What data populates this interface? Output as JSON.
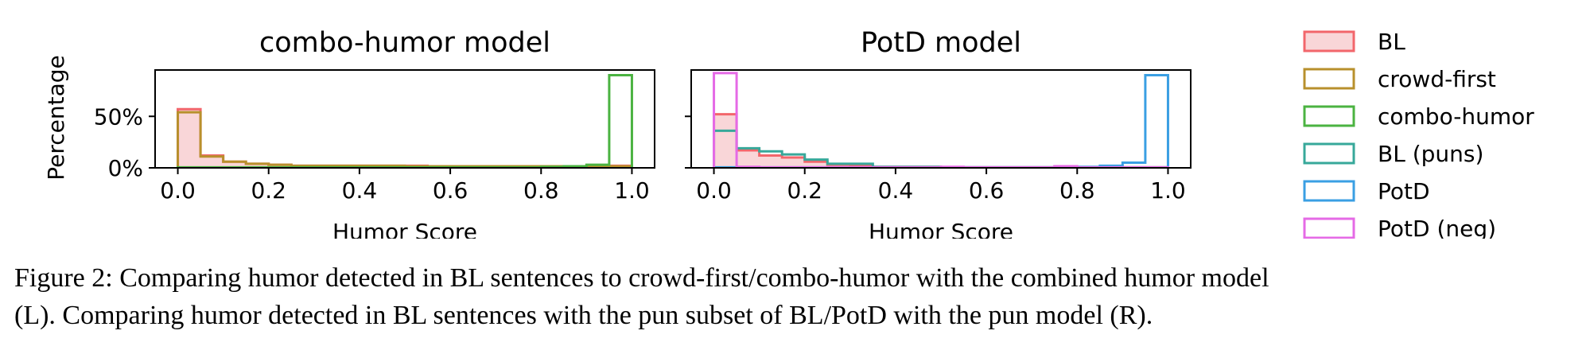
{
  "colors": {
    "BL": "#f2666b",
    "BL_fill": "#f9d6d8",
    "crowd-first": "#b8902c",
    "combo-humor": "#4bb341",
    "BL (puns)": "#37a89a",
    "PotD": "#3a9fe3",
    "PotD (neg)": "#e56ae6"
  },
  "chart_data": [
    {
      "type": "histogram",
      "title": "combo-humor model",
      "xlabel": "Humor Score",
      "ylabel": "Percentage",
      "xlim": [
        -0.05,
        1.05
      ],
      "ylim": [
        0,
        95
      ],
      "xticks": [
        "0.0",
        "0.2",
        "0.4",
        "0.6",
        "0.8",
        "1.0"
      ],
      "yticks": [
        "0%",
        "50%"
      ],
      "bin_edges": [
        0,
        0.05,
        0.1,
        0.15,
        0.2,
        0.25,
        0.3,
        0.35,
        0.4,
        0.45,
        0.5,
        0.55,
        0.6,
        0.65,
        0.7,
        0.75,
        0.8,
        0.85,
        0.9,
        0.95,
        1.0
      ],
      "series": [
        {
          "name": "BL",
          "filled": true,
          "values": [
            57,
            12,
            6,
            4,
            3,
            2,
            2,
            2,
            2,
            2,
            2,
            1.5,
            1.5,
            1.5,
            1.5,
            1.5,
            1.5,
            1.5,
            2,
            2
          ]
        },
        {
          "name": "crowd-first",
          "values": [
            54,
            11,
            6,
            4,
            3,
            2,
            2,
            2,
            2,
            2,
            1.5,
            1.5,
            1.5,
            1.5,
            1.5,
            1.5,
            1.5,
            1.5,
            1.5,
            1.5
          ]
        },
        {
          "name": "combo-humor",
          "values": [
            0.5,
            0.5,
            0.5,
            0.5,
            0.5,
            0.5,
            0.5,
            0.5,
            0.5,
            0.5,
            0.5,
            0.5,
            0.5,
            0.5,
            0.5,
            0.5,
            1,
            1.5,
            3,
            90
          ]
        }
      ]
    },
    {
      "type": "histogram",
      "title": "PotD model",
      "xlabel": "Humor Score",
      "xlim": [
        -0.05,
        1.05
      ],
      "ylim": [
        0,
        95
      ],
      "xticks": [
        "0.0",
        "0.2",
        "0.4",
        "0.6",
        "0.8",
        "1.0"
      ],
      "bin_edges": [
        0,
        0.05,
        0.1,
        0.15,
        0.2,
        0.25,
        0.3,
        0.35,
        0.4,
        0.45,
        0.5,
        0.55,
        0.6,
        0.65,
        0.7,
        0.75,
        0.8,
        0.85,
        0.9,
        0.95,
        1.0
      ],
      "series": [
        {
          "name": "BL",
          "filled": true,
          "values": [
            52,
            17,
            12,
            10,
            6,
            3,
            2,
            1,
            1,
            1,
            0.5,
            0.5,
            0.5,
            0.5,
            0.5,
            1,
            0.5,
            0.5,
            0.5,
            0.5
          ]
        },
        {
          "name": "BL (puns)",
          "values": [
            36,
            19,
            16,
            13,
            8,
            4,
            4,
            1,
            1,
            1,
            0.5,
            0.5,
            0.5,
            0.5,
            0.5,
            0.5,
            0.5,
            0.5,
            0.5,
            0.5
          ]
        },
        {
          "name": "PotD",
          "values": [
            0.5,
            0.5,
            0.5,
            0.5,
            0.5,
            0.5,
            0.5,
            0.5,
            0.5,
            0.5,
            0.5,
            0.5,
            0.5,
            0.5,
            0.5,
            0.5,
            1,
            2,
            5,
            90
          ]
        },
        {
          "name": "PotD (neg)",
          "values": [
            92,
            1,
            0.5,
            0.5,
            0.5,
            0.5,
            0.5,
            0.5,
            0.5,
            0.5,
            1,
            0.5,
            0.5,
            0.5,
            0.5,
            1.5,
            0.5,
            0.5,
            0.5,
            0.5
          ]
        }
      ]
    }
  ],
  "legend": {
    "placement": "right",
    "items": [
      "BL",
      "crowd-first",
      "combo-humor",
      "BL (puns)",
      "PotD",
      "PotD (neg)"
    ]
  },
  "caption": {
    "line1": "Figure 2: Comparing humor detected in BL sentences to crowd-first/combo-humor with the combined humor model",
    "line2": "(L). Comparing humor detected in BL sentences with the pun subset of BL/PotD with the pun model (R)."
  }
}
